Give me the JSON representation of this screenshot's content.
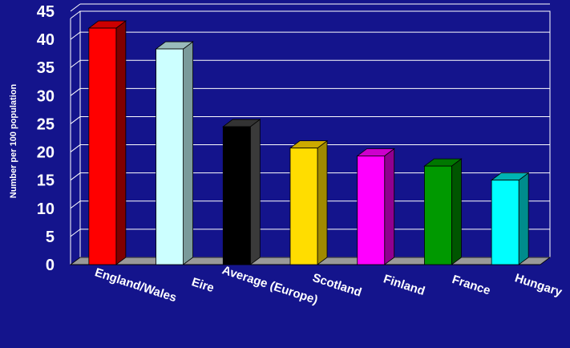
{
  "chart_data": {
    "type": "bar",
    "categories": [
      "England/Wales",
      "Eire",
      "Average (Europe)",
      "Scotland",
      "Finland",
      "France",
      "Hungary"
    ],
    "values": [
      42,
      38.3,
      24.5,
      20.7,
      19.3,
      17.5,
      15
    ],
    "colors": [
      "#ff0000",
      "#ccffff",
      "#000000",
      "#ffdd00",
      "#ff00ff",
      "#009900",
      "#00ffff"
    ],
    "side_colors": [
      "#800000",
      "#7a9a9a",
      "#3a3a3a",
      "#a08a00",
      "#900090",
      "#005500",
      "#008c8c"
    ],
    "top_colors": [
      "#cc0000",
      "#99bbbb",
      "#333333",
      "#ccaa00",
      "#cc00cc",
      "#007700",
      "#00b3b3"
    ],
    "ylabel": "Number per 100 population",
    "ylim": [
      0,
      45
    ],
    "yticks": [
      0,
      5,
      10,
      15,
      20,
      25,
      30,
      35,
      40,
      45
    ],
    "grid": true,
    "background": "#14148c",
    "plot_background": "#14148c",
    "floor_color": "#999999",
    "grid_color": "#ffffff"
  }
}
